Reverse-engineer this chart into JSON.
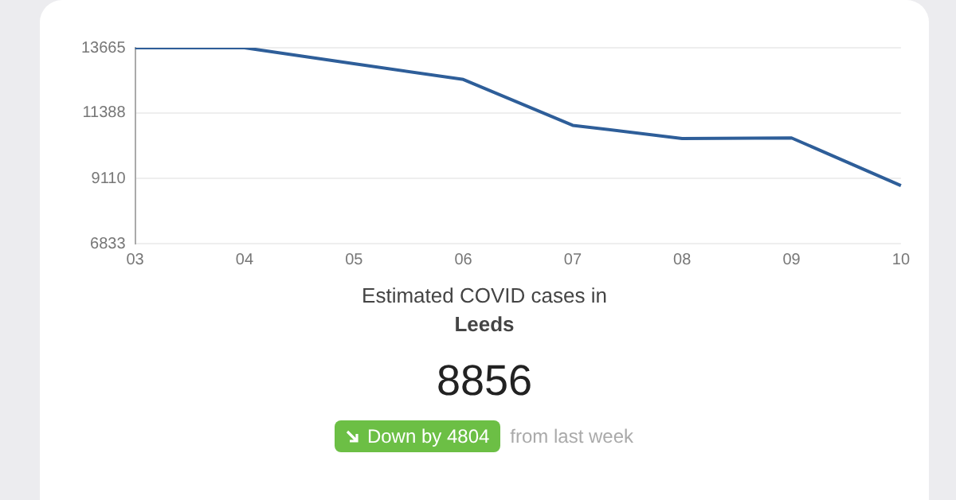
{
  "chart_data": {
    "type": "line",
    "title": "Estimated COVID cases in",
    "subtitle": "Leeds",
    "categories": [
      "03",
      "04",
      "05",
      "06",
      "07",
      "08",
      "09",
      "10"
    ],
    "series": [
      {
        "color": "#2e5e99",
        "values": [
          13665,
          13665,
          13110,
          12560,
          10960,
          10500,
          10520,
          8856
        ]
      }
    ],
    "ylim": [
      6833,
      13665
    ],
    "yticks": [
      6833,
      9110,
      11388,
      13665
    ],
    "grid": "y",
    "legend": false,
    "marker": "none",
    "line_style": "solid",
    "annotations": [
      "8856",
      "Down by 4804",
      "from last week"
    ]
  }
}
